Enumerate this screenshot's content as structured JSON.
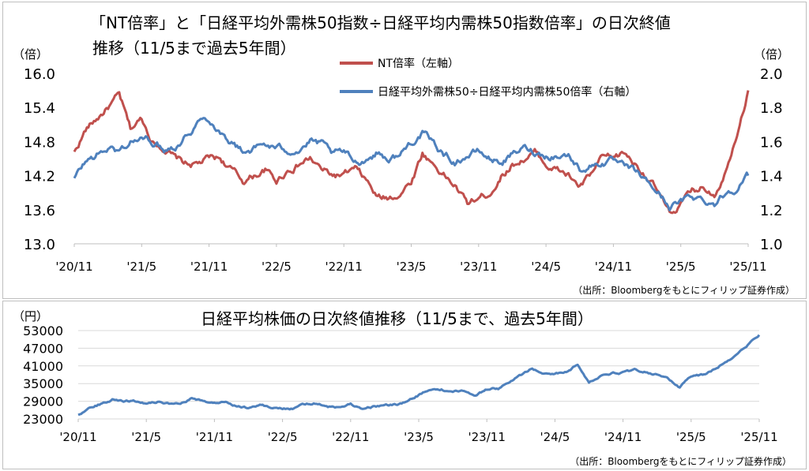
{
  "chart_data": [
    {
      "type": "line",
      "title": "「NT倍率」と「日経平均外需株50指数÷日経平均内需株50指数倍率」の日次終値",
      "subtitle": "推移（11/5まで過去5年間）",
      "ylabel_left": "（倍）",
      "ylabel_right": "（倍）",
      "ylim_left": [
        13.0,
        16.0
      ],
      "ylim_right": [
        1.0,
        2.0
      ],
      "yticks_left": [
        "16.0",
        "15.4",
        "14.8",
        "14.2",
        "13.6",
        "13.0"
      ],
      "yticks_right": [
        "2.0",
        "1.8",
        "1.6",
        "1.4",
        "1.2",
        "1.0"
      ],
      "xtick_labels": [
        "'20/11",
        "'21/5",
        "'21/11",
        "'22/5",
        "'22/11",
        "'23/5",
        "'23/11",
        "'24/5",
        "'24/11",
        "'25/5",
        "'25/11"
      ],
      "legend_position": "top-right",
      "grid": false,
      "source": "（出所：Bloombergをもとにフィリップ証券作成）",
      "series": [
        {
          "name": "NT倍率（左軸）",
          "axis": "left",
          "color": "#c0504d",
          "x": [
            "2020-11",
            "2020-12",
            "2021-01",
            "2021-02",
            "2021-03",
            "2021-04",
            "2021-05",
            "2021-06",
            "2021-07",
            "2021-08",
            "2021-09",
            "2021-10",
            "2021-11",
            "2021-12",
            "2022-01",
            "2022-02",
            "2022-03",
            "2022-04",
            "2022-05",
            "2022-06",
            "2022-07",
            "2022-08",
            "2022-09",
            "2022-10",
            "2022-11",
            "2022-12",
            "2023-01",
            "2023-02",
            "2023-03",
            "2023-04",
            "2023-05",
            "2023-06",
            "2023-07",
            "2023-08",
            "2023-09",
            "2023-10",
            "2023-11",
            "2023-12",
            "2024-01",
            "2024-02",
            "2024-03",
            "2024-04",
            "2024-05",
            "2024-06",
            "2024-07",
            "2024-08",
            "2024-09",
            "2024-10",
            "2024-11",
            "2024-12",
            "2025-01",
            "2025-02",
            "2025-03",
            "2025-04",
            "2025-05",
            "2025-06",
            "2025-07",
            "2025-08",
            "2025-09",
            "2025-10",
            "2025-11"
          ],
          "values": [
            14.6,
            15.0,
            15.2,
            15.4,
            15.6,
            15.0,
            15.2,
            14.8,
            14.7,
            14.5,
            14.4,
            14.4,
            14.5,
            14.5,
            14.3,
            14.1,
            14.2,
            14.3,
            14.1,
            14.3,
            14.4,
            14.5,
            14.3,
            14.2,
            14.2,
            14.3,
            14.1,
            13.8,
            13.8,
            13.9,
            14.1,
            14.6,
            14.4,
            14.2,
            14.0,
            13.7,
            13.8,
            13.9,
            14.2,
            14.4,
            14.5,
            14.6,
            14.4,
            14.3,
            14.2,
            14.0,
            14.2,
            14.5,
            14.5,
            14.6,
            14.4,
            14.2,
            13.9,
            13.5,
            13.7,
            13.9,
            14.0,
            13.9,
            14.3,
            15.0,
            15.7
          ]
        },
        {
          "name": "日経平均外需株50÷日経平均内需株50倍率（右軸）",
          "axis": "right",
          "color": "#4f81bd",
          "x": [
            "2020-11",
            "2020-12",
            "2021-01",
            "2021-02",
            "2021-03",
            "2021-04",
            "2021-05",
            "2021-06",
            "2021-07",
            "2021-08",
            "2021-09",
            "2021-10",
            "2021-11",
            "2021-12",
            "2022-01",
            "2022-02",
            "2022-03",
            "2022-04",
            "2022-05",
            "2022-06",
            "2022-07",
            "2022-08",
            "2022-09",
            "2022-10",
            "2022-11",
            "2022-12",
            "2023-01",
            "2023-02",
            "2023-03",
            "2023-04",
            "2023-05",
            "2023-06",
            "2023-07",
            "2023-08",
            "2023-09",
            "2023-10",
            "2023-11",
            "2023-12",
            "2024-01",
            "2024-02",
            "2024-03",
            "2024-04",
            "2024-05",
            "2024-06",
            "2024-07",
            "2024-08",
            "2024-09",
            "2024-10",
            "2024-11",
            "2024-12",
            "2025-01",
            "2025-02",
            "2025-03",
            "2025-04",
            "2025-05",
            "2025-06",
            "2025-07",
            "2025-08",
            "2025-09",
            "2025-10",
            "2025-11"
          ],
          "values": [
            1.38,
            1.48,
            1.52,
            1.56,
            1.54,
            1.6,
            1.62,
            1.6,
            1.56,
            1.58,
            1.64,
            1.72,
            1.74,
            1.66,
            1.6,
            1.54,
            1.56,
            1.58,
            1.56,
            1.55,
            1.56,
            1.6,
            1.58,
            1.52,
            1.53,
            1.48,
            1.5,
            1.54,
            1.5,
            1.52,
            1.6,
            1.65,
            1.58,
            1.52,
            1.48,
            1.52,
            1.54,
            1.5,
            1.48,
            1.52,
            1.56,
            1.54,
            1.52,
            1.52,
            1.52,
            1.44,
            1.46,
            1.48,
            1.48,
            1.44,
            1.42,
            1.36,
            1.3,
            1.22,
            1.24,
            1.28,
            1.26,
            1.24,
            1.3,
            1.34,
            1.4
          ]
        }
      ]
    },
    {
      "type": "line",
      "title": "日経平均株価の日次終値推移（11/5まで、過去5年間）",
      "ylabel": "（円）",
      "ylim": [
        23000,
        53000
      ],
      "yticks": [
        "53000",
        "47000",
        "41000",
        "35000",
        "29000",
        "23000"
      ],
      "xtick_labels": [
        "'20/11",
        "'21/5",
        "'21/11",
        "'22/5",
        "'22/11",
        "'23/5",
        "'23/11",
        "'24/5",
        "'24/11",
        "'25/5",
        "'25/11"
      ],
      "grid": true,
      "source": "（出所：Bloombergをもとにフィリップ証券作成）",
      "series": [
        {
          "color": "#4f81bd",
          "x": [
            "2020-11",
            "2020-12",
            "2021-01",
            "2021-02",
            "2021-03",
            "2021-04",
            "2021-05",
            "2021-06",
            "2021-07",
            "2021-08",
            "2021-09",
            "2021-10",
            "2021-11",
            "2021-12",
            "2022-01",
            "2022-02",
            "2022-03",
            "2022-04",
            "2022-05",
            "2022-06",
            "2022-07",
            "2022-08",
            "2022-09",
            "2022-10",
            "2022-11",
            "2022-12",
            "2023-01",
            "2023-02",
            "2023-03",
            "2023-04",
            "2023-05",
            "2023-06",
            "2023-07",
            "2023-08",
            "2023-09",
            "2023-10",
            "2023-11",
            "2023-12",
            "2024-01",
            "2024-02",
            "2024-03",
            "2024-04",
            "2024-05",
            "2024-06",
            "2024-07",
            "2024-08",
            "2024-09",
            "2024-10",
            "2024-11",
            "2024-12",
            "2025-01",
            "2025-02",
            "2025-03",
            "2025-04",
            "2025-05",
            "2025-06",
            "2025-07",
            "2025-08",
            "2025-09",
            "2025-10",
            "2025-11"
          ],
          "values": [
            24500,
            26800,
            28200,
            29800,
            29200,
            29000,
            28500,
            29000,
            28000,
            27600,
            29800,
            28900,
            28500,
            28800,
            27500,
            26800,
            27800,
            27000,
            26700,
            26500,
            27800,
            28500,
            27000,
            26900,
            28000,
            26500,
            27200,
            27500,
            27800,
            28700,
            31000,
            33000,
            33000,
            32200,
            32500,
            31200,
            33000,
            33300,
            35500,
            37800,
            40200,
            38500,
            38500,
            39000,
            41500,
            35000,
            37800,
            38800,
            38800,
            39500,
            39000,
            38000,
            36500,
            33500,
            37500,
            38000,
            39800,
            42500,
            45000,
            48500,
            51500
          ]
        }
      ]
    }
  ]
}
